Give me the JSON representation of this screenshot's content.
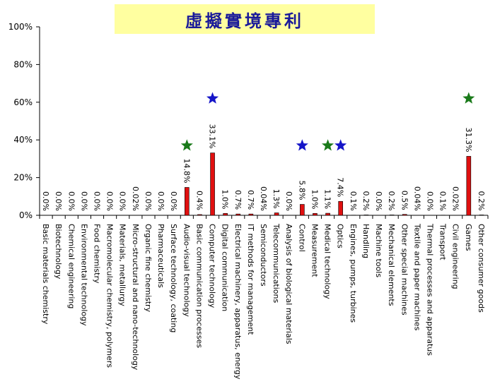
{
  "colors": {
    "bar": "#e01010",
    "star_blue": "#1515c8",
    "star_green": "#1a7a1a",
    "title_bg": "#ffffa0",
    "title_text": "#1a1a9a"
  },
  "chart_data": {
    "type": "bar",
    "title": "虛擬實境專利",
    "ylim": [
      0,
      100
    ],
    "yticks": [
      "0%",
      "20%",
      "40%",
      "60%",
      "80%",
      "100%"
    ],
    "grid": false,
    "categories": [
      "Basic materials chemistry",
      "Biotechnology",
      "Chemical engineering",
      "Environmental technology",
      "Food chemistry",
      "Macromolecular chemistry, polymers",
      "Materials, metallurgy",
      "Micro-structural and nano-technology",
      "Organic fine chemistry",
      "Pharmaceuticals",
      "Surface technology, coating",
      "Audio-visual technology",
      "Basic communication processes",
      "Computer technology",
      "Digital communication",
      "Electrical machinery, apparatus, energy",
      "IT methods for management",
      "Semiconductors",
      "Telecommunications",
      "Analysis of biological materials",
      "Control",
      "Measurement",
      "Medical technology",
      "Optics",
      "Engines, pumps, turbines",
      "Handling",
      "Machine tools",
      "Mechanical elements",
      "Other special machines",
      "Textile and paper machines",
      "Thermal processes and apparatus",
      "Transport",
      "Civil engineering",
      "Games",
      "Other consumer goods"
    ],
    "values": [
      0.0,
      0.0,
      0.0,
      0.0,
      0.0,
      0.0,
      0.0,
      0.02,
      0.0,
      0.0,
      0.0,
      14.8,
      0.4,
      33.1,
      1.0,
      0.7,
      0.7,
      0.04,
      1.3,
      0.0,
      5.8,
      1.0,
      1.1,
      7.4,
      0.1,
      0.2,
      0.0,
      0.2,
      0.5,
      0.04,
      0.0,
      0.1,
      0.02,
      31.3,
      0.2
    ],
    "labels": [
      "0.0%",
      "0.0%",
      "0.0%",
      "0.0%",
      "0.0%",
      "0.0%",
      "0.0%",
      "0.02%",
      "0.0%",
      "0.0%",
      "0.0%",
      "14.8%",
      "0.4%",
      "33.1%",
      "1.0%",
      "0.7%",
      "0.7%",
      "0.04%",
      "1.3%",
      "0.0%",
      "5.8%",
      "1.0%",
      "1.1%",
      "7.4%",
      "0.1%",
      "0.2%",
      "0.0%",
      "0.2%",
      "0.5%",
      "0.04%",
      "0.0%",
      "0.1%",
      "0.02%",
      "31.3%",
      "0.2%"
    ],
    "markers": [
      {
        "category": "Audio-visual technology",
        "y": 37,
        "color": "green"
      },
      {
        "category": "Computer technology",
        "y": 62,
        "color": "blue"
      },
      {
        "category": "Control",
        "y": 37,
        "color": "blue"
      },
      {
        "category": "Medical technology",
        "y": 37,
        "color": "green"
      },
      {
        "category": "Optics",
        "y": 37,
        "color": "blue"
      },
      {
        "category": "Games",
        "y": 62,
        "color": "green"
      }
    ]
  }
}
